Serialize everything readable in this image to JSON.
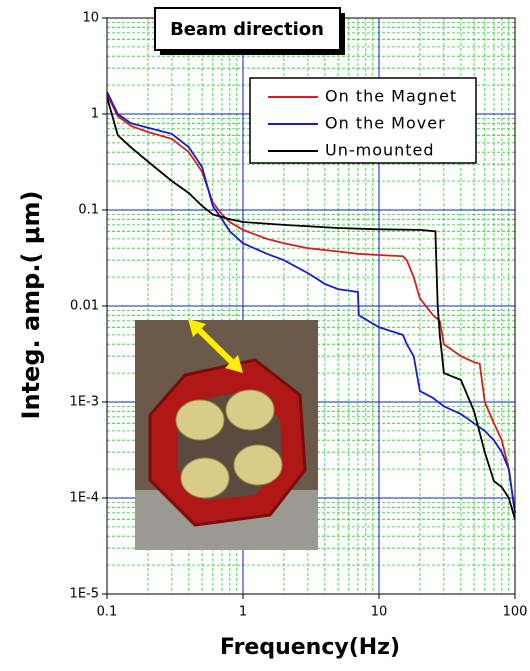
{
  "chart_data": {
    "type": "line",
    "title": "Beam direction",
    "xlabel": "Frequency(Hz)",
    "ylabel": "Integ. amp.( μm)",
    "xscale": "log",
    "yscale": "log",
    "xlim": [
      0.1,
      100
    ],
    "ylim": [
      1e-05,
      10
    ],
    "xticks": [
      0.1,
      1,
      10,
      100
    ],
    "yticks": [
      {
        "value": 1e-05,
        "label": "1E-5"
      },
      {
        "value": 0.0001,
        "label": "1E-4"
      },
      {
        "value": 0.001,
        "label": "1E-3"
      },
      0.01,
      0.1,
      1,
      10
    ],
    "grid": true,
    "minor_grid": true,
    "legend": "upper right",
    "series": [
      {
        "name": "On the Magnet",
        "color": "#d42020",
        "x": [
          0.1,
          0.12,
          0.15,
          0.2,
          0.3,
          0.4,
          0.5,
          0.6,
          0.7,
          0.8,
          1,
          1.5,
          2,
          3,
          5,
          7,
          10,
          15,
          16,
          18,
          20,
          25,
          28,
          30,
          40,
          50,
          55,
          60,
          70,
          80,
          90,
          100
        ],
        "values": [
          1.6,
          0.95,
          0.75,
          0.65,
          0.55,
          0.4,
          0.25,
          0.12,
          0.09,
          0.075,
          0.062,
          0.05,
          0.045,
          0.04,
          0.037,
          0.035,
          0.034,
          0.033,
          0.03,
          0.02,
          0.012,
          0.008,
          0.007,
          0.004,
          0.003,
          0.0026,
          0.0025,
          0.001,
          0.0006,
          0.0004,
          0.0002,
          7e-05
        ]
      },
      {
        "name": "On the Mover",
        "color": "#1a1ad0",
        "x": [
          0.1,
          0.12,
          0.15,
          0.2,
          0.3,
          0.4,
          0.5,
          0.6,
          0.7,
          0.8,
          1,
          1.5,
          2,
          3,
          4,
          5,
          7,
          7.1,
          10,
          15,
          16,
          18,
          20,
          25,
          30,
          40,
          50,
          60,
          70,
          80,
          90,
          100
        ],
        "values": [
          1.7,
          1.0,
          0.8,
          0.72,
          0.62,
          0.45,
          0.28,
          0.11,
          0.08,
          0.06,
          0.045,
          0.035,
          0.03,
          0.022,
          0.017,
          0.015,
          0.014,
          0.008,
          0.006,
          0.005,
          0.004,
          0.003,
          0.0013,
          0.0011,
          0.0009,
          0.00075,
          0.0006,
          0.0005,
          0.0004,
          0.0003,
          0.0002,
          7e-05
        ]
      },
      {
        "name": "Un-mounted",
        "color": "#000000",
        "x": [
          0.1,
          0.12,
          0.15,
          0.2,
          0.3,
          0.4,
          0.5,
          0.6,
          0.8,
          1,
          2,
          5,
          10,
          20,
          26,
          27,
          28,
          30,
          40,
          50,
          60,
          70,
          80,
          90,
          100
        ],
        "values": [
          1.5,
          0.6,
          0.45,
          0.32,
          0.2,
          0.15,
          0.11,
          0.09,
          0.08,
          0.075,
          0.07,
          0.065,
          0.063,
          0.062,
          0.06,
          0.01,
          0.005,
          0.002,
          0.0017,
          0.0008,
          0.0003,
          0.00015,
          0.00013,
          0.0001,
          6e-05
        ]
      }
    ]
  }
}
